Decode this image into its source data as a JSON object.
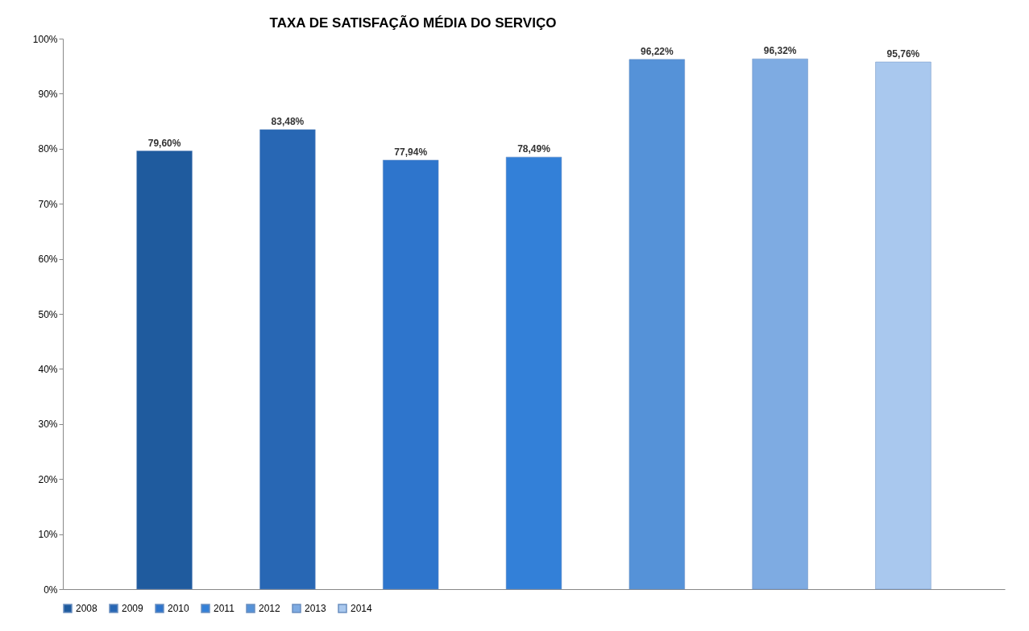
{
  "chart_data": {
    "type": "bar",
    "title": "TAXA DE SATISFAÇÃO MÉDIA DO SERVIÇO",
    "categories": [
      null,
      null,
      null,
      null,
      null,
      null,
      null
    ],
    "series": [
      {
        "name": "2008",
        "color": "#1f5b9e",
        "values": [
          79.6,
          null,
          null,
          null,
          null,
          null,
          null
        ],
        "value_labels": [
          "79,60%",
          null,
          null,
          null,
          null,
          null,
          null
        ]
      },
      {
        "name": "2009",
        "color": "#2867b4",
        "values": [
          null,
          83.48,
          null,
          null,
          null,
          null,
          null
        ],
        "value_labels": [
          null,
          "83,48%",
          null,
          null,
          null,
          null,
          null
        ]
      },
      {
        "name": "2010",
        "color": "#2e75cc",
        "values": [
          null,
          null,
          77.94,
          null,
          null,
          null,
          null
        ],
        "value_labels": [
          null,
          null,
          "77,94%",
          null,
          null,
          null,
          null
        ]
      },
      {
        "name": "2011",
        "color": "#3380d8",
        "values": [
          null,
          null,
          null,
          78.49,
          null,
          null,
          null
        ],
        "value_labels": [
          null,
          null,
          null,
          "78,49%",
          null,
          null,
          null
        ]
      },
      {
        "name": "2012",
        "color": "#5592d8",
        "values": [
          null,
          null,
          null,
          null,
          96.22,
          null,
          null
        ],
        "value_labels": [
          null,
          null,
          null,
          null,
          "96,22%",
          null,
          null
        ]
      },
      {
        "name": "2013",
        "color": "#7eabe2",
        "values": [
          null,
          null,
          null,
          null,
          null,
          96.32,
          null
        ],
        "value_labels": [
          null,
          null,
          null,
          null,
          null,
          "96,32%",
          null
        ]
      },
      {
        "name": "2014",
        "color": "#a9c8ee",
        "values": [
          null,
          null,
          null,
          null,
          null,
          null,
          95.76
        ],
        "value_labels": [
          null,
          null,
          null,
          null,
          null,
          null,
          "95,76%"
        ]
      }
    ],
    "ylim": [
      0,
      100
    ],
    "yticks": [
      {
        "value": 0,
        "label": "0%"
      },
      {
        "value": 10,
        "label": "10%"
      },
      {
        "value": 20,
        "label": "20%"
      },
      {
        "value": 30,
        "label": "30%"
      },
      {
        "value": 40,
        "label": "40%"
      },
      {
        "value": 50,
        "label": "50%"
      },
      {
        "value": 60,
        "label": "60%"
      },
      {
        "value": 70,
        "label": "70%"
      },
      {
        "value": 80,
        "label": "80%"
      },
      {
        "value": 90,
        "label": "90%"
      },
      {
        "value": 100,
        "label": "100%"
      }
    ],
    "grid": false,
    "legend": "bottom"
  }
}
